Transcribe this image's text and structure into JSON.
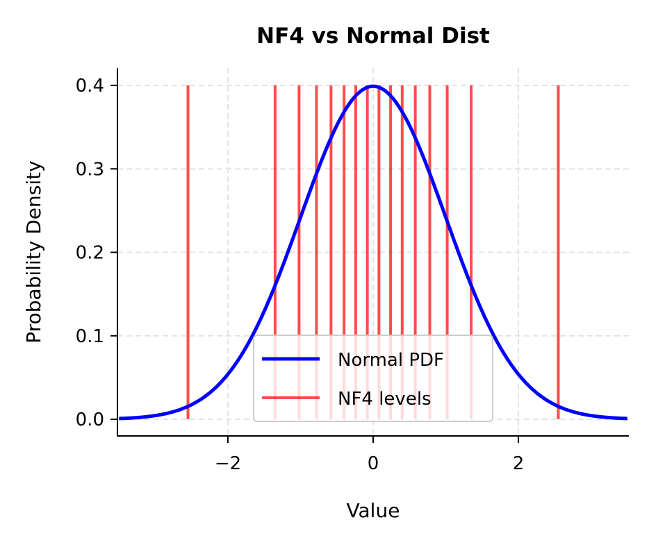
{
  "chart_data": {
    "type": "line",
    "title": "NF4 vs Normal Dist",
    "xlabel": "Value",
    "ylabel": "Probability Density",
    "xlim": [
      -3.5,
      3.5
    ],
    "ylim": [
      -0.02,
      0.42
    ],
    "xticks": [
      -2,
      0,
      2
    ],
    "xtick_labels": [
      "−2",
      "0",
      "2"
    ],
    "yticks": [
      0.0,
      0.1,
      0.2,
      0.3,
      0.4
    ],
    "ytick_labels": [
      "0.0",
      "0.1",
      "0.2",
      "0.3",
      "0.4"
    ],
    "grid": true,
    "legend_placement": "lower-center",
    "series": [
      {
        "name": "Normal PDF",
        "kind": "line",
        "function": "standard normal pdf",
        "color": "#0000ff"
      },
      {
        "name": "NF4 levels",
        "kind": "vlines",
        "color": "#ff0000",
        "alpha": 0.7,
        "ymin": 0,
        "ymax": 0.4,
        "x": [
          -2.55,
          -1.35,
          -1.02,
          -0.78,
          -0.58,
          -0.4,
          -0.24,
          -0.08,
          0.08,
          0.24,
          0.4,
          0.58,
          0.78,
          1.02,
          1.35,
          2.55
        ]
      }
    ]
  }
}
